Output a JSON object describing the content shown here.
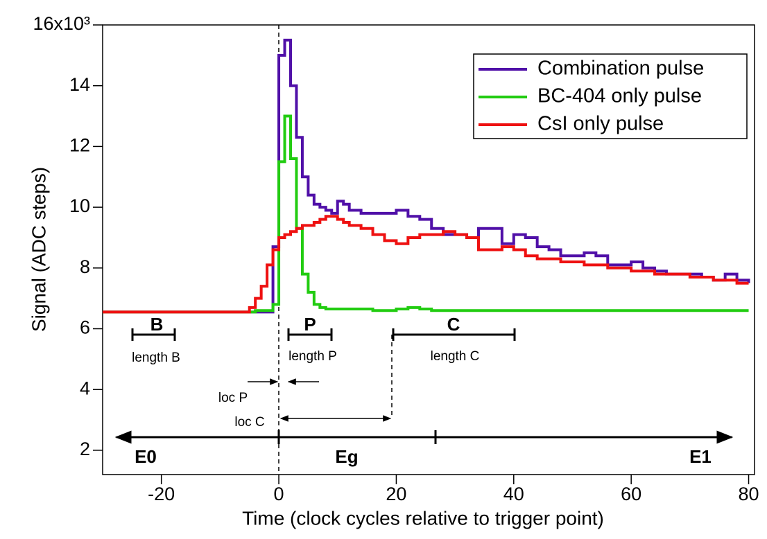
{
  "chart_data": {
    "type": "step",
    "x_label": "Time (clock cycles relative to trigger point)",
    "y_label": "Signal (ADC steps)",
    "x": [
      -30,
      -5,
      -4,
      -3,
      -2,
      -1,
      0,
      1,
      2,
      3,
      4,
      5,
      6,
      7,
      8,
      9,
      10,
      11,
      12,
      14,
      16,
      18,
      20,
      22,
      24,
      26,
      28,
      30,
      32,
      34,
      36,
      38,
      40,
      42,
      44,
      46,
      48,
      50,
      52,
      54,
      56,
      58,
      60,
      62,
      64,
      66,
      68,
      70,
      72,
      74,
      76,
      78,
      80
    ],
    "series": [
      {
        "name": "Combination pulse",
        "color": "#5010a8",
        "values": [
          6.55,
          6.55,
          6.55,
          6.55,
          6.55,
          8.7,
          15.0,
          15.5,
          14.0,
          12.3,
          11.0,
          10.4,
          10.1,
          10.0,
          9.9,
          9.8,
          10.2,
          10.1,
          9.9,
          9.8,
          9.8,
          9.8,
          9.9,
          9.7,
          9.6,
          9.3,
          9.1,
          9.1,
          9.0,
          9.3,
          9.3,
          8.8,
          9.1,
          9.0,
          8.7,
          8.6,
          8.4,
          8.4,
          8.5,
          8.4,
          8.1,
          8.1,
          8.2,
          8.0,
          7.9,
          7.8,
          7.8,
          7.8,
          7.7,
          7.6,
          7.8,
          7.6,
          7.5
        ]
      },
      {
        "name": "BC-404 only pulse",
        "color": "#22cc11",
        "values": [
          6.55,
          6.55,
          6.6,
          6.6,
          6.6,
          6.8,
          11.5,
          13.0,
          11.6,
          9.3,
          7.8,
          7.2,
          6.8,
          6.7,
          6.65,
          6.65,
          6.65,
          6.65,
          6.65,
          6.65,
          6.6,
          6.6,
          6.65,
          6.7,
          6.65,
          6.6,
          6.6,
          6.6,
          6.6,
          6.6,
          6.6,
          6.6,
          6.6,
          6.6,
          6.6,
          6.6,
          6.6,
          6.6,
          6.6,
          6.6,
          6.6,
          6.6,
          6.6,
          6.6,
          6.6,
          6.6,
          6.6,
          6.6,
          6.6,
          6.6,
          6.6,
          6.6,
          6.6
        ]
      },
      {
        "name": "CsI only pulse",
        "color": "#ee1111",
        "values": [
          6.55,
          6.7,
          7.0,
          7.4,
          8.1,
          8.6,
          9.0,
          9.1,
          9.2,
          9.3,
          9.4,
          9.4,
          9.5,
          9.6,
          9.7,
          9.7,
          9.6,
          9.5,
          9.4,
          9.3,
          9.1,
          8.9,
          8.8,
          9.0,
          9.1,
          9.1,
          9.2,
          9.1,
          9.0,
          8.6,
          8.6,
          8.7,
          8.6,
          8.4,
          8.3,
          8.3,
          8.2,
          8.2,
          8.1,
          8.1,
          8.0,
          8.0,
          7.9,
          7.9,
          7.8,
          7.8,
          7.8,
          7.7,
          7.7,
          7.6,
          7.6,
          7.5,
          7.5
        ]
      }
    ],
    "xlim": [
      -30,
      81
    ],
    "xticks": [
      -20,
      0,
      20,
      40,
      60,
      80
    ],
    "ylim": [
      1.2,
      16
    ],
    "yticks": [
      2,
      4,
      6,
      8,
      10,
      12,
      14,
      {
        "value": 16,
        "label": "16x10³"
      }
    ],
    "legend": "upper right",
    "annotations": [
      "B",
      "length B",
      "P",
      "length P",
      "C",
      "length C",
      "loc P",
      "loc C",
      "E0",
      "Eg",
      "E1"
    ]
  }
}
